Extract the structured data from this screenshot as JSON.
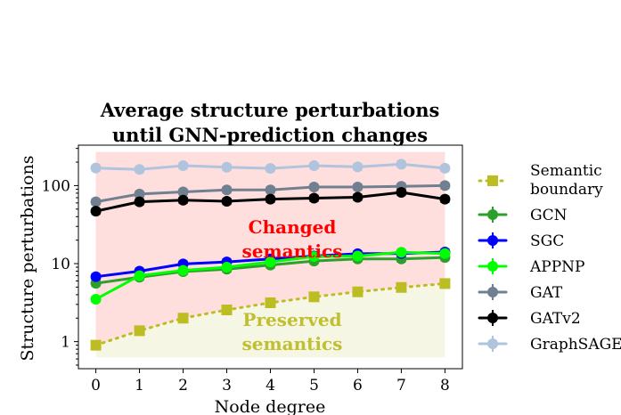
{
  "chart_data": {
    "type": "line",
    "title_lines": [
      "Average structure perturbations",
      "until GNN-prediction changes"
    ],
    "xlabel": "Node degree",
    "ylabel": "Structure perturbations",
    "yscale": "log",
    "xlim": [
      -0.4,
      8.4
    ],
    "ylim": [
      0.45,
      330
    ],
    "xticks": [
      0,
      1,
      2,
      3,
      4,
      5,
      6,
      7,
      8
    ],
    "yticks": [
      {
        "value": 1,
        "label": "1"
      },
      {
        "value": 10,
        "label": "10"
      },
      {
        "value": 100,
        "label": "100"
      }
    ],
    "x": [
      0,
      1,
      2,
      3,
      4,
      5,
      6,
      7,
      8
    ],
    "regions": [
      {
        "name": "changed",
        "label_lines": [
          "Changed",
          "semantics"
        ],
        "color": "#ff0000",
        "fill": "#ffdede"
      },
      {
        "name": "preserved",
        "label_lines": [
          "Preserved",
          "semantics"
        ],
        "color": "#bfbf2f",
        "fill": "#f6f6e4"
      }
    ],
    "region_bounds": {
      "x_start": 0,
      "x_end": 8,
      "top": 270,
      "bottom": 0.63
    },
    "series": [
      {
        "name": "Semantic boundary",
        "legend_lines": [
          "Semantic",
          "boundary"
        ],
        "color": "#bcbd22",
        "style": "dotted",
        "marker": "square",
        "values": [
          0.9,
          1.38,
          2.0,
          2.55,
          3.15,
          3.75,
          4.35,
          4.95,
          5.55
        ]
      },
      {
        "name": "GCN",
        "legend_lines": [
          "GCN"
        ],
        "color": "#2ca02c",
        "style": "solid",
        "marker": "circle",
        "values": [
          5.6,
          6.7,
          7.9,
          8.5,
          9.6,
          10.8,
          11.5,
          11.5,
          12.0
        ]
      },
      {
        "name": "SGC",
        "legend_lines": [
          "SGC"
        ],
        "color": "#0000ff",
        "style": "solid",
        "marker": "circle",
        "values": [
          6.8,
          8.0,
          9.9,
          10.5,
          11.5,
          12.5,
          13.4,
          13.5,
          14.1
        ]
      },
      {
        "name": "APPNP",
        "legend_lines": [
          "APPNP"
        ],
        "color": "#00ff00",
        "style": "solid",
        "marker": "circle",
        "values": [
          3.5,
          7.0,
          8.2,
          9.0,
          10.5,
          12.3,
          12.5,
          14.0,
          13.5
        ]
      },
      {
        "name": "GAT",
        "legend_lines": [
          "GAT"
        ],
        "color": "#708090",
        "style": "solid",
        "marker": "circle",
        "values": [
          62,
          78,
          83,
          88,
          88,
          96,
          96,
          98,
          100
        ]
      },
      {
        "name": "GATv2",
        "legend_lines": [
          "GATv2"
        ],
        "color": "#000000",
        "style": "solid",
        "marker": "circle",
        "values": [
          47,
          62,
          65,
          63,
          67,
          69,
          71,
          82,
          67
        ]
      },
      {
        "name": "GraphSAGE",
        "legend_lines": [
          "GraphSAGE"
        ],
        "color": "#b0c4de",
        "style": "solid",
        "marker": "circle",
        "values": [
          168,
          161,
          180,
          172,
          166,
          180,
          174,
          188,
          167
        ]
      }
    ]
  }
}
